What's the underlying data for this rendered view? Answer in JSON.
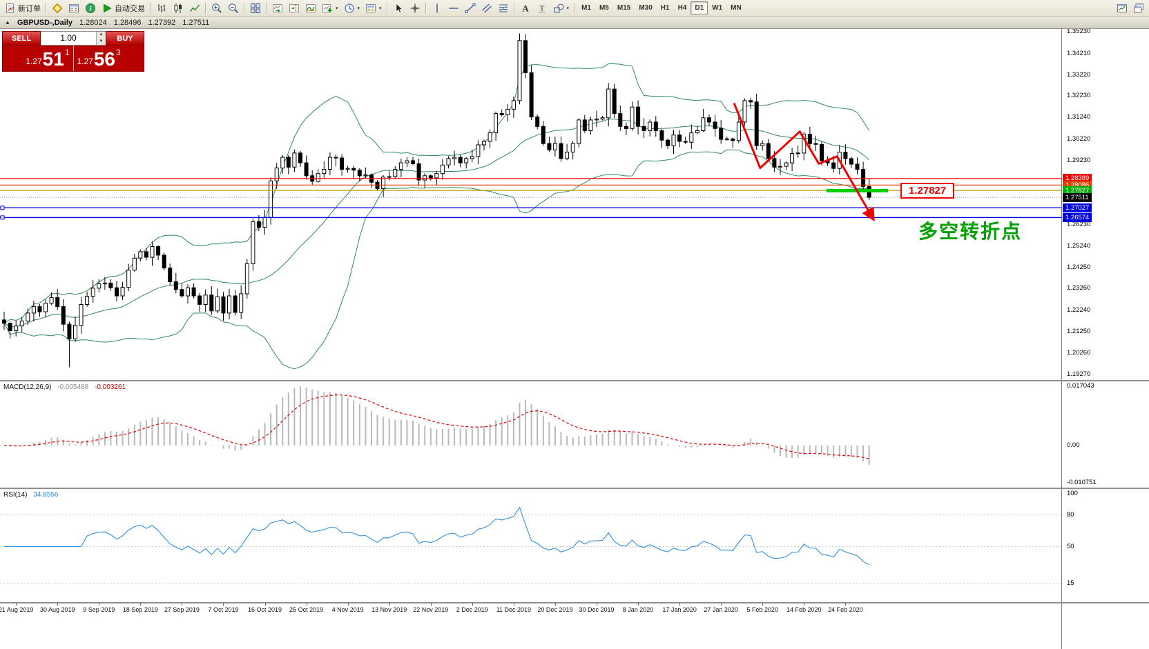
{
  "toolbar": {
    "items": [
      {
        "name": "new-order-button",
        "icon": "new-order-icon",
        "label": "新订单"
      },
      {
        "sep": true
      },
      {
        "name": "metaeditor-button",
        "icon": "editor-icon"
      },
      {
        "name": "market-watch-button",
        "icon": "market-watch-icon"
      },
      {
        "name": "data-window-button",
        "icon": "info-icon"
      },
      {
        "name": "autotrading-button",
        "icon": "play-icon",
        "label": "自动交易"
      },
      {
        "sep": true
      },
      {
        "name": "bar-chart-button",
        "icon": "bars-icon"
      },
      {
        "name": "candlestick-chart-button",
        "icon": "candles-icon"
      },
      {
        "name": "line-chart-button",
        "icon": "line-chart-icon"
      },
      {
        "sep": true
      },
      {
        "name": "zoom-in-button",
        "icon": "zoom-in-icon"
      },
      {
        "name": "zoom-out-button",
        "icon": "zoom-out-icon"
      },
      {
        "sep": true
      },
      {
        "name": "tile-windows-button",
        "icon": "tile-icon"
      },
      {
        "sep": true
      },
      {
        "name": "auto-scroll-button",
        "icon": "auto-scroll-icon"
      },
      {
        "name": "chart-shift-button",
        "icon": "chart-shift-icon"
      },
      {
        "name": "indicators-button",
        "icon": "indicators-icon"
      },
      {
        "name": "add-indicator-button",
        "icon": "add-indicator-icon",
        "dropdown": true
      },
      {
        "name": "periods-button",
        "icon": "clock-icon",
        "dropdown": true
      },
      {
        "name": "templates-button",
        "icon": "template-icon",
        "dropdown": true
      },
      {
        "sep": true
      },
      {
        "name": "cursor-button",
        "icon": "cursor-icon"
      },
      {
        "name": "crosshair-button",
        "icon": "crosshair-icon"
      },
      {
        "sep": true
      },
      {
        "name": "vertical-line-button",
        "icon": "vline-icon"
      },
      {
        "name": "horizontal-line-button",
        "icon": "hline-icon"
      },
      {
        "name": "trendline-button",
        "icon": "trendline-icon"
      },
      {
        "name": "channel-button",
        "icon": "channel-icon"
      },
      {
        "name": "fibonacci-button",
        "icon": "fibo-icon"
      },
      {
        "sep": true
      },
      {
        "name": "text-button",
        "icon": "text-icon"
      },
      {
        "name": "label-button",
        "icon": "label-icon"
      },
      {
        "name": "shapes-button",
        "icon": "shapes-icon",
        "dropdown": true
      },
      {
        "sep": true
      }
    ],
    "timeframes": [
      "M1",
      "M5",
      "M15",
      "M30",
      "H1",
      "H4",
      "D1",
      "W1",
      "MN"
    ],
    "active_timeframe": "D1",
    "right_items": [
      {
        "name": "new-chart-button",
        "icon": "new-chart-icon"
      },
      {
        "name": "profiles-button",
        "icon": "cascade-icon"
      }
    ]
  },
  "chart_header": {
    "symbol": "GBPUSD-,Daily",
    "open": "1.28024",
    "high": "1.28496",
    "low": "1.27392",
    "close": "1.27511"
  },
  "trade_panel": {
    "sell_label": "SELL",
    "buy_label": "BUY",
    "volume": "1.00",
    "sell_price": {
      "prefix": "1.27",
      "big": "51",
      "sup": "1"
    },
    "buy_price": {
      "prefix": "1.27",
      "big": "56",
      "sup": "3"
    }
  },
  "price_scale_ticks": [
    "1.35230",
    "1.34210",
    "1.33220",
    "1.32230",
    "1.31240",
    "1.30220",
    "1.29230",
    "1.26230",
    "1.25240",
    "1.24250",
    "1.23260",
    "1.22240",
    "1.21250",
    "1.20260",
    "1.19270"
  ],
  "scale_badges": [
    {
      "text": "1.28389",
      "price": 1.28389,
      "color": "#f00000"
    },
    {
      "text": "1.28086",
      "price": 1.28086,
      "color": "#e04000"
    },
    {
      "text": "1.27827",
      "price": 1.27827,
      "color": "#00b000"
    },
    {
      "text": "1.27511",
      "price": 1.27511,
      "color": "#000000"
    },
    {
      "text": "1.27027",
      "price": 1.27027,
      "color": "#0000e0"
    },
    {
      "text": "1.26574",
      "price": 1.26574,
      "color": "#0000e0"
    }
  ],
  "hlines": [
    {
      "price": 1.28389,
      "color": "#f00000",
      "width": 1.2,
      "marker": false
    },
    {
      "price": 1.28086,
      "color": "#e04000",
      "width": 1.2,
      "marker": false
    },
    {
      "price": 1.27837,
      "color": "#b8a000",
      "width": 1.2,
      "marker": false
    },
    {
      "price": 1.27027,
      "color": "#0000e0",
      "width": 1.4,
      "marker": true
    },
    {
      "price": 1.26574,
      "color": "#0000e0",
      "width": 1.4,
      "marker": true
    }
  ],
  "current_price": {
    "label": "1.27511",
    "price": 1.27511
  },
  "annotations": {
    "note": "多空转折点",
    "price_label": "1.27827",
    "trend_color": "#f00000",
    "trend_points": [
      [
        123.2,
        1.319
      ],
      [
        127.6,
        1.2888
      ],
      [
        134.3,
        1.3058
      ],
      [
        137.5,
        1.2908
      ],
      [
        140.6,
        1.2942
      ],
      [
        146.6,
        1.2655
      ]
    ],
    "green_segment": {
      "from_index": 138.8,
      "to_index": 149.2,
      "price": 1.27827,
      "color": "#00cc00"
    }
  },
  "macd_panel": {
    "title": "MACD(12,26,9)",
    "value_main": "-0.005488",
    "value_signal": "-0.003261",
    "scale": [
      "0.017043",
      "0.00",
      "-0.010751"
    ]
  },
  "rsi_panel": {
    "title": "RSI(14)",
    "value": "34.8556",
    "scale": [
      "100",
      "80",
      "50",
      "15"
    ],
    "levels": [
      80,
      50,
      15
    ]
  },
  "chart_data": {
    "type": "candlestick",
    "symbol": "GBPUSD-",
    "timeframe": "Daily",
    "y_range": [
      1.19,
      1.3536
    ],
    "x_labels": [
      "21 Aug 2019",
      "30 Aug 2019",
      "9 Sep 2019",
      "18 Sep 2019",
      "27 Sep 2019",
      "7 Oct 2019",
      "16 Oct 2019",
      "25 Oct 2019",
      "4 Nov 2019",
      "13 Nov 2019",
      "22 Nov 2019",
      "2 Dec 2019",
      "11 Dec 2019",
      "20 Dec 2019",
      "30 Dec 2019",
      "8 Jan 2020",
      "17 Jan 2020",
      "27 Jan 2020",
      "5 Feb 2020",
      "14 Feb 2020",
      "24 Feb 2020"
    ],
    "label_first_index": 2,
    "label_step": 7,
    "open_first": 1.218,
    "closes": [
      1.2165,
      1.213,
      1.2152,
      1.2175,
      1.2212,
      1.2242,
      1.2218,
      1.2258,
      1.2284,
      1.2242,
      1.216,
      1.2092,
      1.2155,
      1.2252,
      1.229,
      1.2328,
      1.2348,
      1.2352,
      1.233,
      1.2292,
      1.2332,
      1.2412,
      1.2468,
      1.2498,
      1.2472,
      1.2522,
      1.2482,
      1.2422,
      1.2358,
      1.2322,
      1.2292,
      1.233,
      1.2292,
      1.2252,
      1.2296,
      1.2222,
      1.2288,
      1.2212,
      1.2292,
      1.2215,
      1.2302,
      1.2442,
      1.2638,
      1.2612,
      1.2658,
      1.2828,
      1.2888,
      1.2938,
      1.2892,
      1.2958,
      1.2912,
      1.2852,
      1.2826,
      1.2862,
      1.2882,
      1.2938,
      1.2935,
      1.2882,
      1.2886,
      1.2878,
      1.2852,
      1.2856,
      1.2822,
      1.2792,
      1.2846,
      1.2848,
      1.2882,
      1.2912,
      1.2922,
      1.2908,
      1.2832,
      1.2852,
      1.2842,
      1.2862,
      1.2902,
      1.2932,
      1.2938,
      1.2912,
      1.2932,
      1.2942,
      1.2996,
      1.3012,
      1.3052,
      1.3142,
      1.3136,
      1.3162,
      1.3202,
      1.3482,
      1.3332,
      1.3126,
      1.3082,
      1.3002,
      1.2972,
      1.3002,
      1.2932,
      1.2962,
      1.3002,
      1.3112,
      1.3062,
      1.3112,
      1.3116,
      1.3122,
      1.3256,
      1.3142,
      1.3082,
      1.3072,
      1.3172,
      1.3082,
      1.3062,
      1.3102,
      1.3062,
      1.3018,
      1.2992,
      1.3042,
      1.3012,
      1.3008,
      1.3052,
      1.3062,
      1.3122,
      1.3102,
      1.3072,
      1.3022,
      1.3024,
      1.3016,
      1.3102,
      1.3202,
      1.3196,
      1.2992,
      1.3002,
      1.2932,
      1.2892,
      1.2896,
      1.2912,
      1.2956,
      1.2958,
      1.3046,
      1.3002,
      1.2998,
      1.2922,
      1.2912,
      1.2886,
      1.2962,
      1.2932,
      1.2906,
      1.2882,
      1.2802,
      1.2751
    ],
    "wick_overrides": {
      "11": {
        "low": 1.1959
      },
      "87": {
        "high": 1.3515,
        "low": 1.3185
      },
      "88": {
        "high": 1.3512
      },
      "102": {
        "high": 1.3284
      },
      "125": {
        "high": 1.3212
      },
      "146": {
        "low": 1.2739
      }
    },
    "indicators": {
      "bollinger_period": 20,
      "bollinger_dev": 2,
      "bollinger_color": "#2e8b57",
      "macd": [
        12,
        26,
        9
      ],
      "macd_histogram_color": "#b9b9b9",
      "macd_signal_color": "#e00000",
      "rsi_period": 14,
      "rsi_color": "#2e8fe0"
    }
  }
}
